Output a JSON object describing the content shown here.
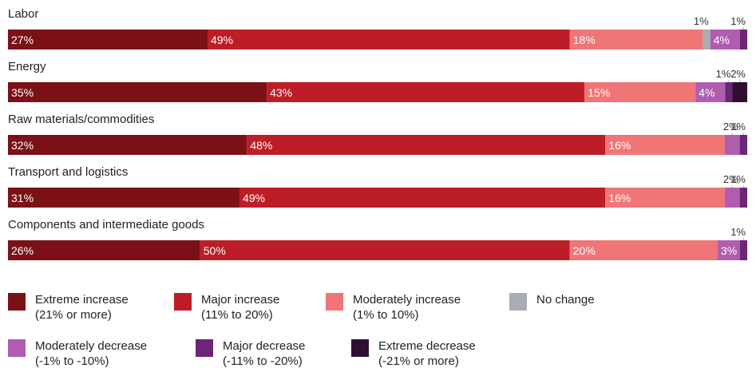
{
  "chart_data": {
    "type": "bar",
    "orientation": "horizontal",
    "stacked": true,
    "percent": true,
    "categories": [
      "Labor",
      "Energy",
      "Raw materials/commodities",
      "Transport and logistics",
      "Components and intermediate goods"
    ],
    "series": [
      {
        "name": "Extreme increase",
        "range": "(21% or more)",
        "color": "#7b1116",
        "values": [
          27,
          35,
          32,
          31,
          26
        ]
      },
      {
        "name": "Major increase",
        "range": "(11% to 20%)",
        "color": "#bd1d27",
        "values": [
          49,
          43,
          48,
          49,
          50
        ]
      },
      {
        "name": "Moderately increase",
        "range": "(1% to 10%)",
        "color": "#f07577",
        "values": [
          18,
          15,
          16,
          16,
          20
        ]
      },
      {
        "name": "No change",
        "range": "",
        "color": "#a9adb1",
        "values": [
          1,
          0,
          0,
          0,
          0
        ]
      },
      {
        "name": "Moderately decrease",
        "range": "(-1% to -10%)",
        "color": "#b05db0",
        "values": [
          4,
          4,
          2,
          2,
          3
        ]
      },
      {
        "name": "Major decrease",
        "range": "(-11% to -20%)",
        "color": "#6b2676",
        "values": [
          1,
          1,
          1,
          1,
          1
        ]
      },
      {
        "name": "Extreme decrease",
        "range": "(-21% or more)",
        "color": "#2f0f2f",
        "values": [
          0,
          2,
          0,
          0,
          0
        ]
      }
    ],
    "value_labels": [
      [
        "27%",
        "49%",
        "18%",
        "1%",
        "4%",
        "1%",
        ""
      ],
      [
        "35%",
        "43%",
        "15%",
        "",
        "4%",
        "1%",
        "2%"
      ],
      [
        "32%",
        "48%",
        "16%",
        "",
        "2%",
        "1%",
        ""
      ],
      [
        "31%",
        "49%",
        "16%",
        "",
        "2%",
        "1%",
        ""
      ],
      [
        "26%",
        "50%",
        "20%",
        "",
        "3%",
        "1%",
        ""
      ]
    ],
    "xlim": [
      0,
      100
    ],
    "grid": false,
    "legend": "bottom"
  }
}
